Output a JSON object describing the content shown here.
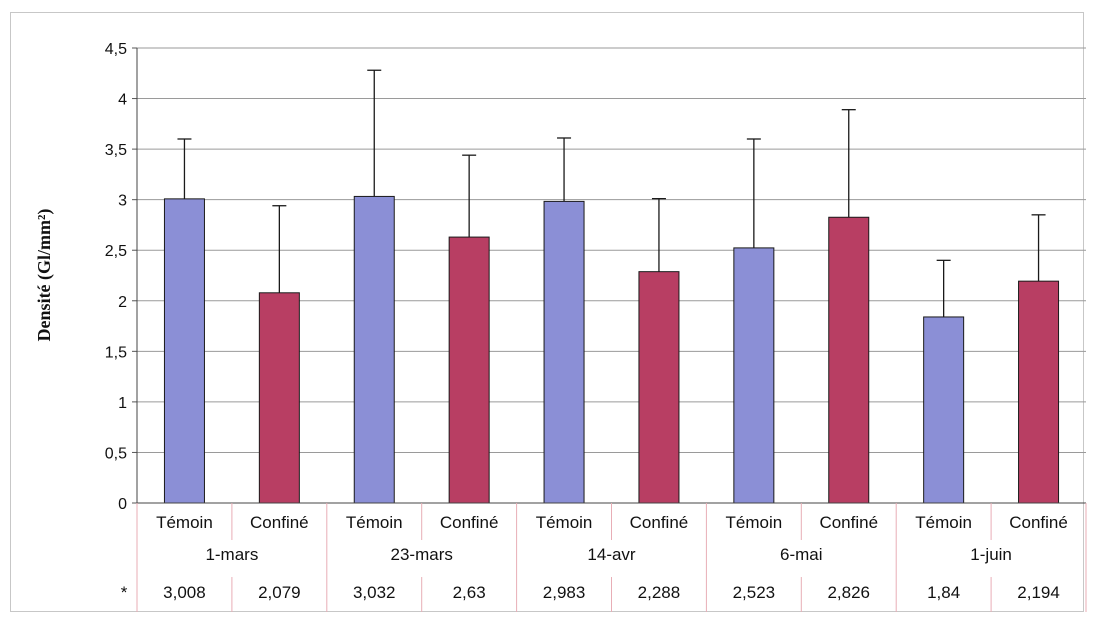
{
  "chart_data": {
    "type": "bar",
    "ylabel": "Densité (Gl/mm²)",
    "ylim": [
      0,
      4.5
    ],
    "yticks": [
      "0",
      "0,5",
      "1",
      "1,5",
      "2",
      "2,5",
      "3",
      "3,5",
      "4",
      "4,5"
    ],
    "grid": true,
    "groups": [
      "1-mars",
      "23-mars",
      "14-avr",
      "6-mai",
      "1-juin"
    ],
    "categories": [
      "Témoin",
      "Confiné",
      "Témoin",
      "Confiné",
      "Témoin",
      "Confiné",
      "Témoin",
      "Confiné",
      "Témoin",
      "Confiné"
    ],
    "values": [
      3.008,
      2.079,
      3.032,
      2.63,
      2.983,
      2.288,
      2.523,
      2.826,
      1.84,
      2.194
    ],
    "error_upper": [
      3.6,
      2.94,
      4.28,
      3.44,
      3.61,
      3.01,
      3.6,
      3.89,
      2.4,
      2.85
    ],
    "colors": [
      "#8b8fd6",
      "#b83e63",
      "#8b8fd6",
      "#b83e63",
      "#8b8fd6",
      "#b83e63",
      "#8b8fd6",
      "#b83e63",
      "#8b8fd6",
      "#b83e63"
    ],
    "table_marker": "*",
    "table_values": [
      "3,008",
      "2,079",
      "3,032",
      "2,63",
      "2,983",
      "2,288",
      "2,523",
      "2,826",
      "1,84",
      "2,194"
    ]
  }
}
